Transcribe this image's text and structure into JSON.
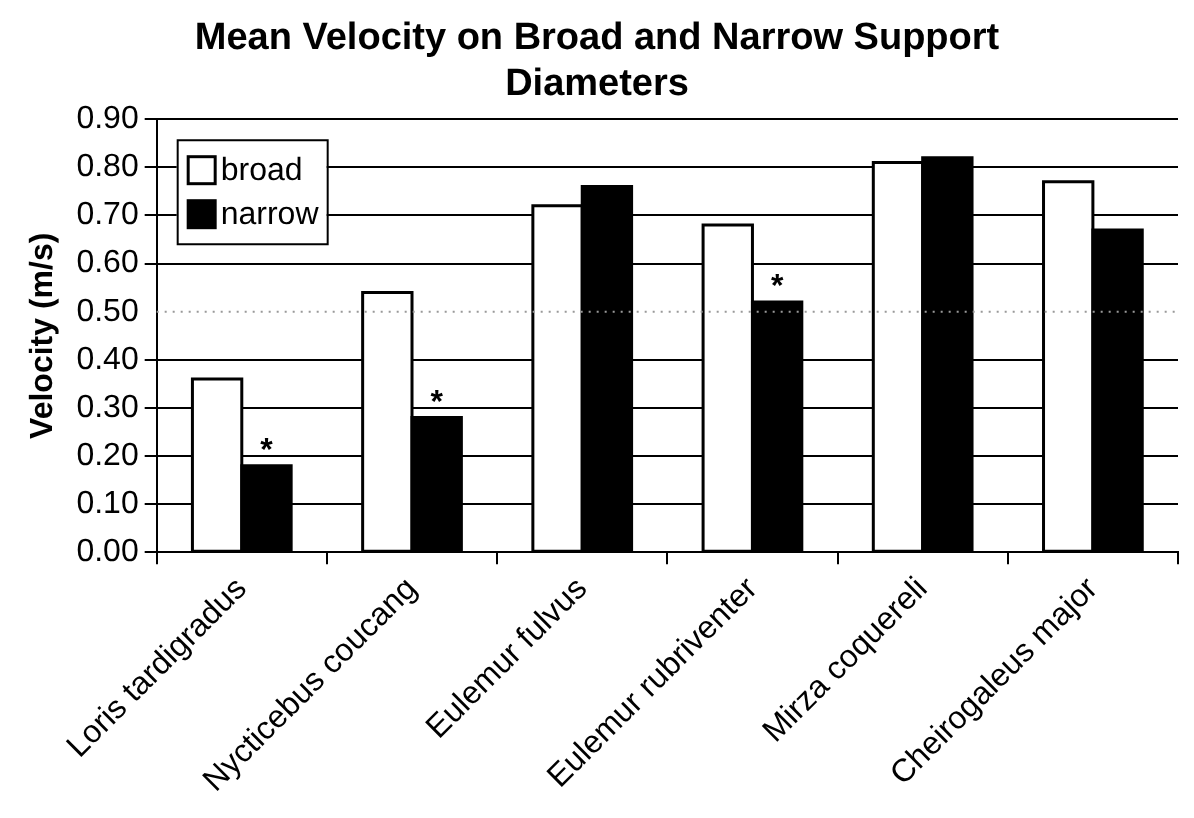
{
  "chart_data": {
    "type": "bar",
    "title": "Mean Velocity on Broad and Narrow Support Diameters",
    "ylabel": "Velocity (m/s)",
    "categories": [
      "Loris tardigradus",
      "Nycticebus coucang",
      "Eulemur fulvus",
      "Eulemur rubriventer",
      "Mirza coquereli",
      "Cheirogaleus major"
    ],
    "series": [
      {
        "name": "broad",
        "color": "#ffffff",
        "values": [
          0.36,
          0.54,
          0.72,
          0.68,
          0.81,
          0.77
        ]
      },
      {
        "name": "narrow",
        "color": "#000000",
        "values": [
          0.18,
          0.28,
          0.76,
          0.52,
          0.82,
          0.67
        ]
      }
    ],
    "ylim": [
      0,
      0.9
    ],
    "yticks": [
      {
        "value": 0,
        "label": "0.00"
      },
      {
        "value": 0.1,
        "label": "0.10"
      },
      {
        "value": 0.2,
        "label": "0.20"
      },
      {
        "value": 0.3,
        "label": "0.30"
      },
      {
        "value": 0.4,
        "label": "0.40"
      },
      {
        "value": 0.5,
        "label": "0.50"
      },
      {
        "value": 0.6,
        "label": "0.60"
      },
      {
        "value": 0.7,
        "label": "0.70"
      },
      {
        "value": 0.8,
        "label": "0.80"
      },
      {
        "value": 0.9,
        "label": "0.90"
      }
    ],
    "grid": "y",
    "legend": "top left",
    "ref_lines": [
      {
        "axis": "y",
        "value": 0.5,
        "line_style": "dotted",
        "color": "#999999"
      }
    ],
    "annotations": [
      {
        "text": "*",
        "x": "Loris tardigradus",
        "y": 0.18
      },
      {
        "text": "*",
        "x": "Nycticebus coucang",
        "y": 0.28
      },
      {
        "text": "*",
        "x": "Eulemur rubriventer",
        "y": 0.52
      }
    ]
  }
}
